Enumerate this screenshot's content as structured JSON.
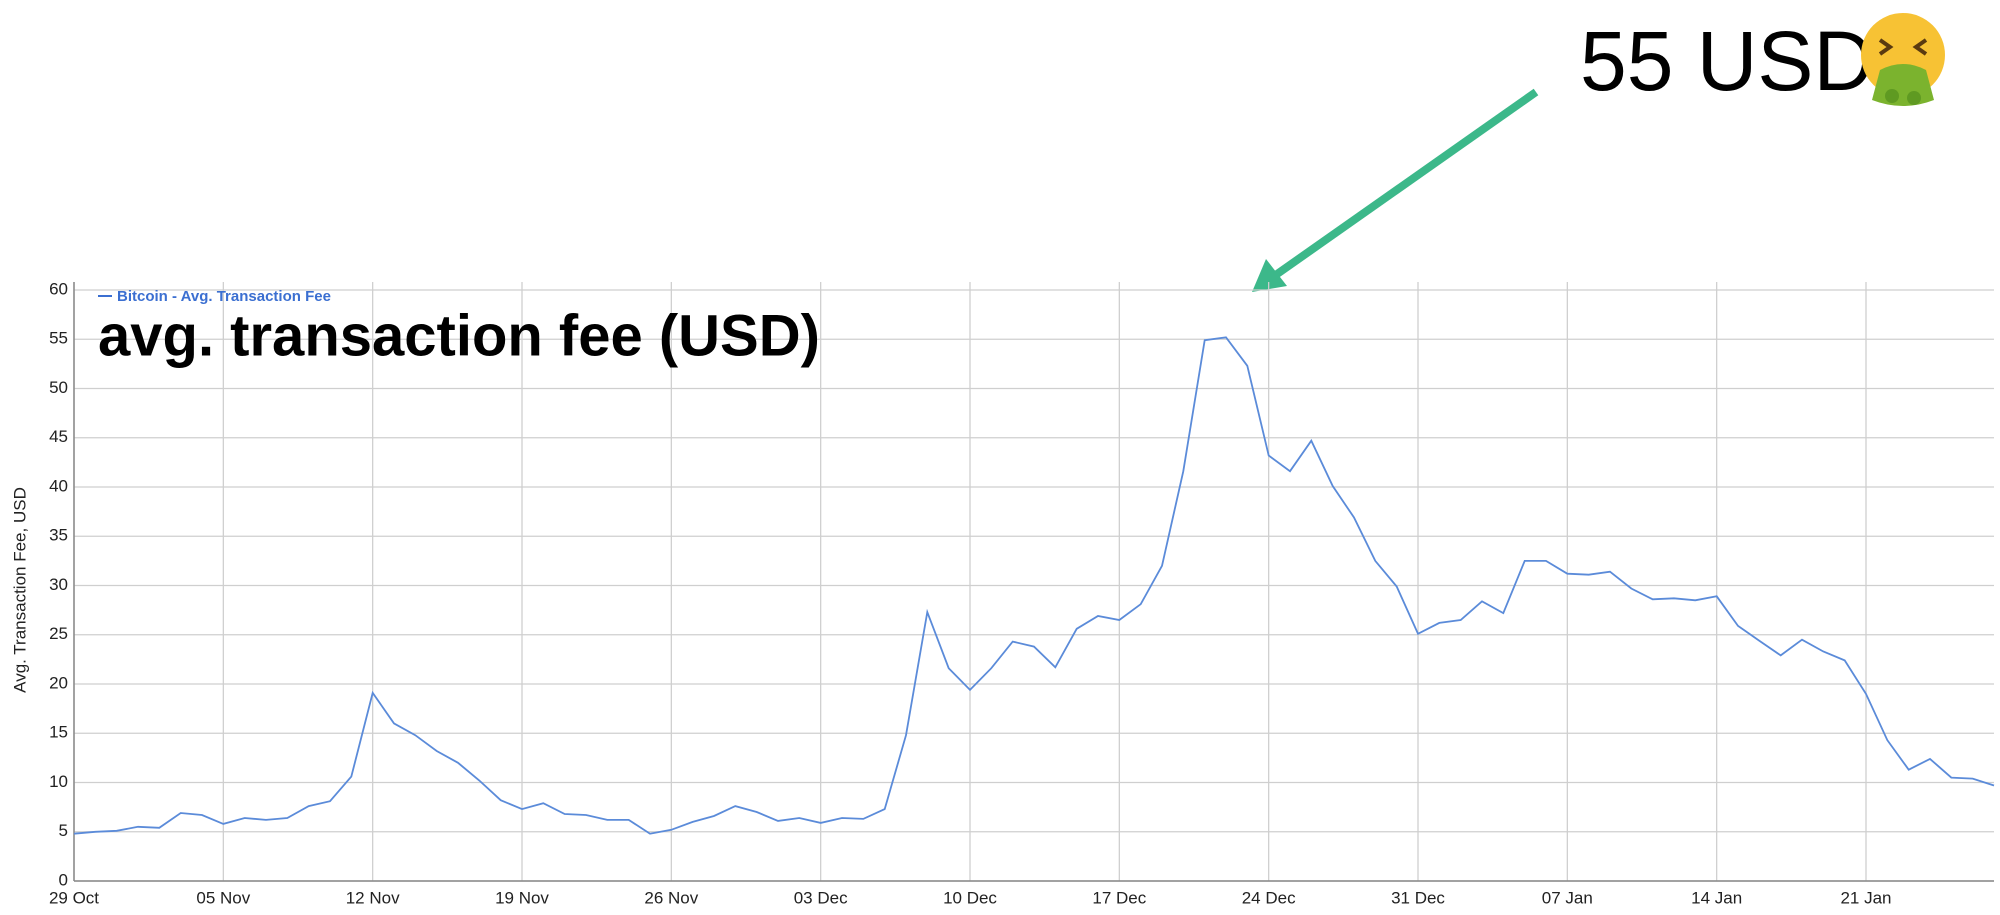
{
  "chart_data": {
    "type": "line",
    "ylabel": "Avg. Transaction Fee, USD",
    "annotations": [
      "avg. transaction fee (USD)",
      "55 USD"
    ],
    "categories": [
      "29 Oct",
      null,
      null,
      null,
      null,
      null,
      null,
      "05 Nov",
      null,
      null,
      null,
      null,
      null,
      null,
      "12 Nov",
      null,
      null,
      null,
      null,
      null,
      null,
      "19 Nov",
      null,
      null,
      null,
      null,
      null,
      null,
      "26 Nov",
      null,
      null,
      null,
      null,
      null,
      null,
      "03 Dec",
      null,
      null,
      null,
      null,
      null,
      null,
      "10 Dec",
      null,
      null,
      null,
      null,
      null,
      null,
      "17 Dec",
      null,
      null,
      null,
      null,
      null,
      null,
      "24 Dec",
      null,
      null,
      null,
      null,
      null,
      null,
      "31 Dec",
      null,
      null,
      null,
      null,
      null,
      null,
      "07 Jan",
      null,
      null,
      null,
      null,
      null,
      null,
      "14 Jan",
      null,
      null,
      null,
      null,
      null,
      null,
      "21 Jan",
      null,
      null,
      null,
      null,
      null,
      null
    ],
    "series": [
      {
        "name": "Bitcoin - Avg. Transaction Fee",
        "color": "#5b8bd9",
        "values": [
          4.8,
          5.0,
          5.1,
          5.5,
          5.4,
          6.9,
          6.7,
          5.8,
          6.4,
          6.2,
          6.4,
          7.6,
          8.1,
          10.6,
          19.1,
          16.0,
          14.8,
          13.2,
          12.0,
          10.2,
          8.2,
          7.3,
          7.9,
          6.8,
          6.7,
          6.2,
          6.2,
          4.8,
          5.2,
          6.0,
          6.6,
          7.6,
          7.0,
          6.1,
          6.4,
          5.9,
          6.4,
          6.3,
          7.3,
          14.8,
          27.3,
          21.6,
          19.4,
          21.6,
          24.3,
          23.8,
          21.7,
          25.6,
          26.9,
          26.5,
          28.1,
          32.0,
          41.6,
          54.9,
          55.2,
          52.3,
          43.2,
          41.6,
          44.7,
          40.1,
          36.9,
          32.5,
          29.9,
          25.1,
          26.2,
          26.5,
          28.4,
          27.2,
          32.5,
          32.5,
          31.2,
          31.1,
          31.4,
          29.7,
          28.6,
          28.7,
          28.5,
          28.9,
          25.9,
          24.4,
          22.9,
          24.5,
          23.3,
          22.4,
          19.0,
          14.3,
          11.3,
          12.4,
          10.5,
          10.4,
          9.7
        ]
      }
    ],
    "ylim": [
      0,
      60
    ],
    "yticks": [
      0,
      5,
      10,
      15,
      20,
      25,
      30,
      35,
      40,
      45,
      50,
      55,
      60
    ],
    "grid": true,
    "legend": "top-left"
  }
}
